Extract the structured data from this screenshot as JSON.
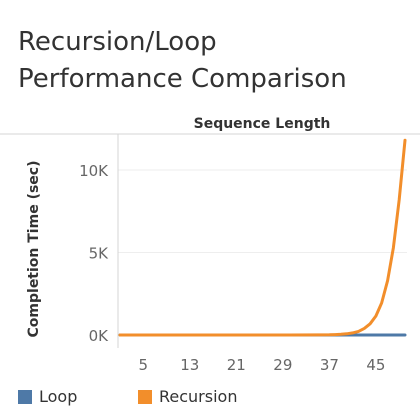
{
  "title_lines": [
    "Recursion/Loop",
    "Performance Comparison"
  ],
  "chart_data": {
    "type": "line",
    "title": "Recursion/Loop Performance Comparison",
    "xlabel": "Sequence Length",
    "ylabel": "Completion Time (sec)",
    "xlim": [
      1,
      50
    ],
    "ylim": [
      0,
      12000
    ],
    "xticks": [
      5,
      13,
      21,
      29,
      37,
      45
    ],
    "xtick_labels": [
      "5",
      "13",
      "21",
      "29",
      "37",
      "45"
    ],
    "yticks": [
      0,
      5000,
      10000
    ],
    "ytick_labels": [
      "0K",
      "5K",
      "10K"
    ],
    "x_axis_position": "top",
    "grid": true,
    "legend_position": "bottom",
    "series": [
      {
        "name": "Loop",
        "color": "#4e79a7",
        "x": [
          1,
          50
        ],
        "values": [
          0,
          0
        ]
      },
      {
        "name": "Recursion",
        "color": "#f28e2b",
        "x": [
          1,
          30,
          35,
          37,
          38,
          39,
          40,
          41,
          42,
          43,
          44,
          45,
          46,
          47,
          48,
          49,
          50
        ],
        "values": [
          0,
          0,
          5,
          12,
          25,
          45,
          75,
          130,
          220,
          400,
          680,
          1150,
          1950,
          3300,
          5300,
          8200,
          11800
        ]
      }
    ]
  }
}
